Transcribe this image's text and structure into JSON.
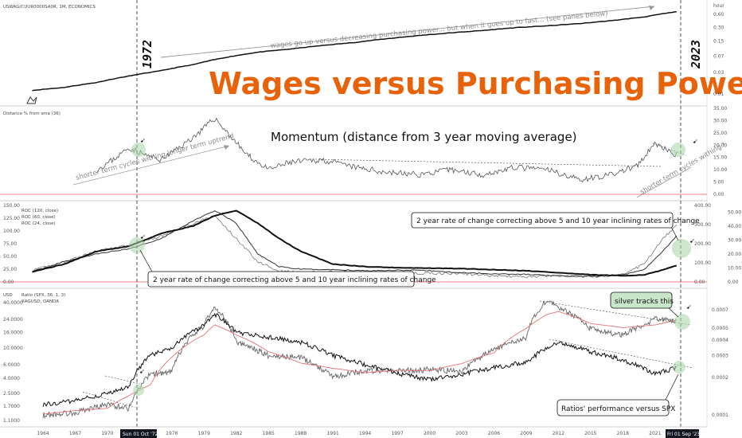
{
  "header": {
    "symbol_label": "USWAG/CUUR0000SA0R, 1M, ECONOMICS"
  },
  "title": "Wages versus Purchasing Power",
  "markers": {
    "year_start": "1972",
    "year_end": "2023"
  },
  "x_axis": {
    "ticks": [
      "1964",
      "1967",
      "1970",
      "1976",
      "1979",
      "1982",
      "1985",
      "1988",
      "1991",
      "1994",
      "1997",
      "2000",
      "2003",
      "2006",
      "2009",
      "2012",
      "2015",
      "2018",
      "2021"
    ],
    "tag_left": "Sun 01 Oct '72",
    "tag_right": "Fri 01 Sep '23"
  },
  "pane1": {
    "right_ticks": [
      "0.60",
      "0.30",
      "0.15",
      "0.07",
      "0.03",
      "0.01"
    ],
    "top_right_label": "hour",
    "note": "wages go up versus decreasing purchasing power... but when it goes up to fast... (see panes below)"
  },
  "pane2": {
    "label": "Distance % from sma (36)",
    "heading": "Momentum (distance from 3 year moving average)",
    "right_ticks": [
      "35.00",
      "30.00",
      "25.00",
      "20.00",
      "15.00",
      "10.00",
      "5.00",
      "0.00"
    ],
    "note_left": "shorter term cycles withing longer term uptrend",
    "note_right": "shorter term cycles withing !"
  },
  "pane3": {
    "labels": [
      "ROC (120, close)",
      "ROC (60, close)",
      "ROC (24, close)"
    ],
    "left_ticks": [
      "150.00",
      "125.00",
      "100.00",
      "75.00",
      "50.00",
      "25.00",
      "0.00"
    ],
    "right_ticks_a": [
      "400.00",
      "300.00",
      "200.00",
      "100.00",
      "0.00"
    ],
    "right_ticks_b": [
      "50.00",
      "40.00",
      "30.00",
      "20.00",
      "10.00",
      "0.00"
    ],
    "callout_top": "2 year rate of change correcting above 5 and 10 year inclining rates of change",
    "callout_bottom": "2 year rate of change correcting above 5 and 10 year inclining rates of change"
  },
  "pane4": {
    "currency": "USD",
    "labels": [
      "Ratio (SPX, 36, 1, 3)",
      "XAGUSD, OANDA"
    ],
    "left_ticks": [
      "40.0000",
      "24.0000",
      "16.0000",
      "10.0000",
      "6.0000",
      "4.0000",
      "2.5000",
      "1.7000",
      "1.1000"
    ],
    "right_ticks": [
      "0.0007",
      "0.0005",
      "0.0004",
      "0.0003",
      "0.0002",
      "0.0001"
    ],
    "callout_silver": "silver tracks this",
    "callout_ratio": "Ratios' performance versus SPX"
  },
  "chart_data": [
    {
      "type": "line",
      "title": "USWAG/CUUR0000SA0R",
      "x": [
        1963,
        1966,
        1969,
        1972,
        1975,
        1978,
        1981,
        1984,
        1987,
        1990,
        1993,
        1996,
        1999,
        2002,
        2005,
        2008,
        2011,
        2014,
        2017,
        2020,
        2023
      ],
      "series": [
        {
          "values": [
            0.012,
            0.014,
            0.018,
            0.025,
            0.033,
            0.045,
            0.065,
            0.085,
            0.1,
            0.12,
            0.14,
            0.17,
            0.2,
            0.23,
            0.26,
            0.3,
            0.33,
            0.37,
            0.43,
            0.52,
            0.68
          ]
        }
      ],
      "ylim": [
        0.01,
        0.7
      ],
      "scale": "log"
    },
    {
      "type": "line",
      "title": "Distance % from sma (36)",
      "x": [
        1969,
        1970.5,
        1972,
        1973.5,
        1975,
        1977,
        1978.5,
        1980,
        1981,
        1983,
        1985,
        1987,
        1990,
        1993,
        1996,
        1999,
        2002,
        2005,
        2008,
        2011,
        2014,
        2017,
        2019.5,
        2021,
        2022,
        2023
      ],
      "series": [
        {
          "values": [
            10,
            14,
            19,
            16,
            14,
            20,
            25,
            31,
            26,
            16,
            10,
            13,
            14,
            11,
            9,
            8,
            10,
            8,
            11,
            10,
            6,
            8,
            12,
            21,
            18,
            16
          ]
        }
      ],
      "ylim": [
        0,
        35
      ]
    },
    {
      "type": "line",
      "title": "ROC",
      "x": [
        1963,
        1966,
        1969,
        1972,
        1975,
        1978,
        1980,
        1982,
        1984,
        1986,
        1988,
        1991,
        1994,
        1997,
        2000,
        2003,
        2006,
        2009,
        2012,
        2015,
        2018,
        2020,
        2021.5,
        2023
      ],
      "series": [
        {
          "name": "ROC (120, close)",
          "values": [
            20,
            35,
            60,
            70,
            95,
            110,
            130,
            140,
            115,
            85,
            60,
            35,
            30,
            28,
            27,
            26,
            24,
            22,
            18,
            14,
            12,
            14,
            22,
            32
          ]
        },
        {
          "name": "ROC (60, close)",
          "values": [
            20,
            40,
            55,
            65,
            85,
            120,
            140,
            115,
            55,
            30,
            25,
            24,
            22,
            23,
            22,
            18,
            16,
            15,
            12,
            11,
            14,
            25,
            55,
            90
          ]
        },
        {
          "name": "ROC (24, close)",
          "values": [
            22,
            40,
            60,
            72,
            90,
            115,
            130,
            85,
            40,
            22,
            18,
            20,
            18,
            17,
            17,
            16,
            12,
            10,
            12,
            10,
            14,
            35,
            80,
            110
          ]
        }
      ],
      "ylim": [
        0,
        150
      ]
    },
    {
      "type": "line",
      "title": "Ratio / XAGUSD",
      "x": [
        1964,
        1967,
        1970,
        1972,
        1974,
        1976,
        1979,
        1980,
        1982,
        1985,
        1988,
        1991,
        1994,
        1997,
        2000,
        2003,
        2006,
        2009,
        2011,
        2012,
        2015,
        2018,
        2021,
        2023
      ],
      "series": [
        {
          "name": "XAGUSD, OANDA",
          "values": [
            1.3,
            1.4,
            1.8,
            1.6,
            4.5,
            4.8,
            20,
            35,
            12,
            8,
            7.5,
            4.2,
            5.0,
            5.0,
            5.2,
            4.9,
            9.5,
            14,
            45,
            35,
            18,
            15,
            24,
            23
          ]
        },
        {
          "name": "Ratio (SPX, 36, 1, 3)",
          "values": [
            1.8,
            2.0,
            2.5,
            3.0,
            8.0,
            10,
            20,
            28,
            16,
            14,
            12,
            8,
            6,
            4.6,
            3.8,
            4.5,
            5.5,
            6.5,
            10,
            12,
            9,
            7,
            4.5,
            5.5
          ]
        }
      ],
      "ylim": [
        1.1,
        40
      ],
      "scale": "log"
    }
  ]
}
